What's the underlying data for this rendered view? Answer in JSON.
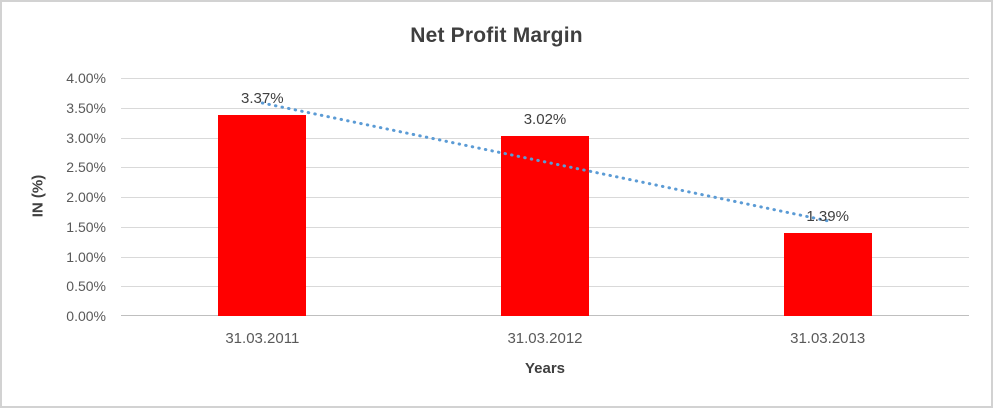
{
  "chart": {
    "title": "Net Profit Margin",
    "y_axis_title": "IN (%)",
    "x_axis_title": "Years"
  },
  "chart_data": {
    "type": "bar",
    "title": "Net Profit Margin",
    "xlabel": "Years",
    "ylabel": "IN (%)",
    "categories": [
      "31.03.2011",
      "31.03.2012",
      "31.03.2013"
    ],
    "values": [
      3.37,
      3.02,
      1.39
    ],
    "value_labels": [
      "3.37%",
      "3.02%",
      "1.39%"
    ],
    "ylim": [
      0,
      4.0
    ],
    "ytick_step": 0.5,
    "ytick_labels": [
      "0.00%",
      "0.50%",
      "1.00%",
      "1.50%",
      "2.00%",
      "2.50%",
      "3.00%",
      "3.50%",
      "4.00%"
    ],
    "grid": true,
    "legend": "none",
    "bar_color": "#ff0000",
    "gridline_color": "#d9d9d9",
    "axis_line_color": "#bfbfbf",
    "text_color": "#404040",
    "tick_text_color": "#595959",
    "trendline": {
      "type": "linear",
      "style": "dotted",
      "color": "#5b9bd5",
      "start_value": 3.58,
      "end_value": 1.6
    }
  }
}
